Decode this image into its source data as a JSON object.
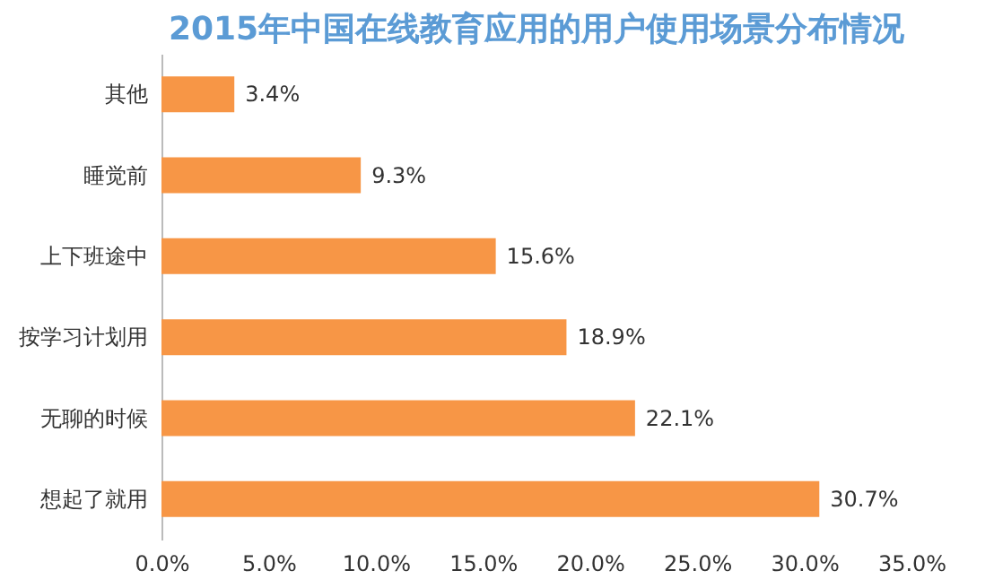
{
  "chart_data": {
    "type": "bar",
    "orientation": "horizontal",
    "title": "2015年中国在线教育应用的用户使用场景分布情况",
    "categories": [
      "其他",
      "睡觉前",
      "上下班途中",
      "按学习计划用",
      "无聊的时候",
      "想起了就用"
    ],
    "values": [
      3.4,
      9.3,
      15.6,
      18.9,
      22.1,
      30.7
    ],
    "value_labels": [
      "3.4%",
      "9.3%",
      "15.6%",
      "18.9%",
      "22.1%",
      "30.7%"
    ],
    "color": "#f79646",
    "xlim": [
      0,
      35
    ],
    "xticks": [
      {
        "value": 0,
        "label": "0.0%"
      },
      {
        "value": 5,
        "label": "5.0%"
      },
      {
        "value": 10,
        "label": "10.0%"
      },
      {
        "value": 15,
        "label": "15.0%"
      },
      {
        "value": 20,
        "label": "20.0%"
      },
      {
        "value": 25,
        "label": "25.0%"
      },
      {
        "value": 30,
        "label": "30.0%"
      },
      {
        "value": 35,
        "label": "35.0%"
      }
    ],
    "grid": false
  }
}
